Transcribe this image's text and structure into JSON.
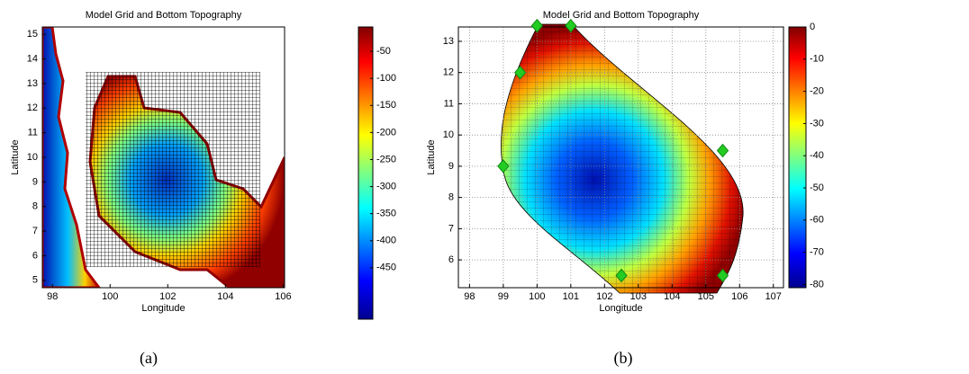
{
  "chart_data": [
    {
      "type": "heatmap",
      "title": "Model Grid and Bottom Topography",
      "x_label": "Longitude",
      "y_label": "Latitude",
      "caption": "(a)",
      "xlim": [
        97.65,
        106.05
      ],
      "xticks": [
        98,
        100,
        102,
        104,
        106
      ],
      "ylim": [
        4.7,
        15.3
      ],
      "yticks": [
        5,
        6,
        7,
        8,
        9,
        10,
        11,
        12,
        13,
        14,
        15
      ],
      "grid": false,
      "colormap": "jet",
      "colorbar": {
        "lim": [
          -545,
          -5
        ],
        "ticks": [
          -50,
          -100,
          -150,
          -200,
          -250,
          -300,
          -350,
          -400,
          -450
        ]
      }
    },
    {
      "type": "heatmap",
      "title": "Model Grid and Bottom Topography",
      "x_label": "Longitude",
      "y_label": "Latitude",
      "caption": "(b)",
      "xlim": [
        97.67,
        107.3
      ],
      "xticks": [
        98,
        99,
        100,
        101,
        102,
        103,
        104,
        105,
        106,
        107
      ],
      "ylim": [
        5.11,
        13.46
      ],
      "yticks": [
        6,
        7,
        8,
        9,
        10,
        11,
        12,
        13
      ],
      "grid": true,
      "colormap": "jet",
      "colorbar": {
        "lim": [
          -81,
          0
        ],
        "ticks": [
          0,
          -10,
          -20,
          -30,
          -40,
          -50,
          -60,
          -70,
          -80
        ]
      },
      "markers": {
        "color": "#22cc22",
        "x": [
          100,
          101,
          99.5,
          99,
          102.5,
          105.5,
          105.5
        ],
        "y": [
          13.5,
          13.5,
          12,
          9,
          5.5,
          5.5,
          9.5
        ]
      }
    }
  ]
}
